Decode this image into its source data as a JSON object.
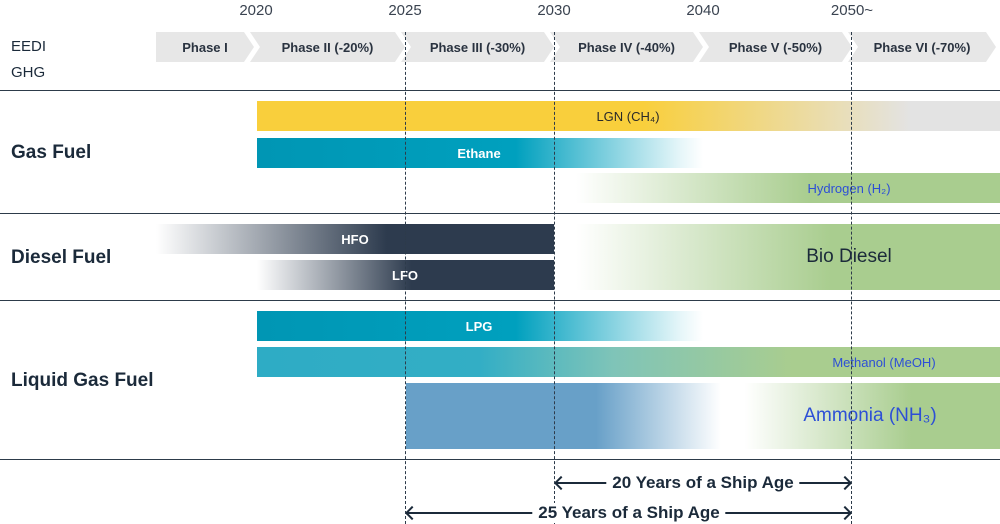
{
  "years": [
    "2020",
    "2025",
    "2030",
    "2040",
    "2050~"
  ],
  "side_labels": {
    "eedi": "EEDI",
    "ghg": "GHG"
  },
  "phases": [
    "Phase I",
    "Phase II (-20%)",
    "Phase III (-30%)",
    "Phase IV (-40%)",
    "Phase V (-50%)",
    "Phase VI (-70%)"
  ],
  "groups": {
    "gas": "Gas Fuel",
    "diesel": "Diesel Fuel",
    "liquid": "Liquid Gas Fuel"
  },
  "bars": {
    "lng": "LGN (CH₄)",
    "ethane": "Ethane",
    "hydrogen": "Hydrogen (H₂)",
    "hfo": "HFO",
    "lfo": "LFO",
    "biodiesel": "Bio Diesel",
    "lpg": "LPG",
    "methanol": "Methanol (MeOH)",
    "ammonia": "Ammonia (NH₃)"
  },
  "ship_age": {
    "twenty": "20 Years of a Ship Age",
    "twentyfive": "25 Years of a Ship Age"
  },
  "colors": {
    "lng": "#f9cf3c",
    "teal": "#00a0be",
    "green": "#a9cd8f",
    "navy": "#2d3b4e",
    "methanol": "#33aec5",
    "ammonia": "#68a0c8",
    "link_text": "#2d4fd6"
  }
}
